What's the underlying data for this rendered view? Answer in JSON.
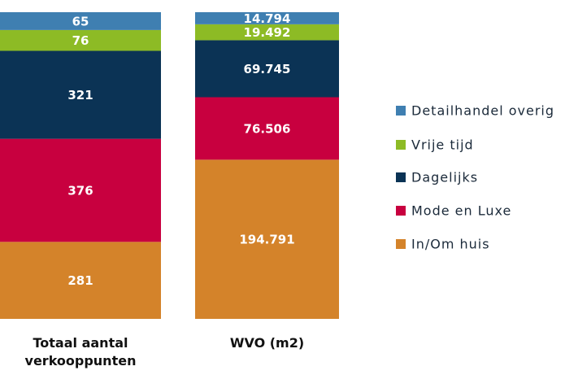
{
  "chart_data": {
    "type": "stacked_bar_100",
    "categories": [
      "Totaal aantal verkooppunten",
      "WVO (m2)"
    ],
    "series": [
      {
        "name": "Detailhandel overig",
        "color": "#3f7fb1",
        "values": [
          65,
          14794
        ],
        "value_labels": [
          "65",
          "14.794"
        ]
      },
      {
        "name": "Vrije tijd",
        "color": "#8dbb25",
        "values": [
          76,
          19492
        ],
        "value_labels": [
          "76",
          "19.492"
        ]
      },
      {
        "name": "Dagelijks",
        "color": "#0b3355",
        "values": [
          321,
          69745
        ],
        "value_labels": [
          "321",
          "69.745"
        ]
      },
      {
        "name": "Mode en Luxe",
        "color": "#c8003f",
        "values": [
          376,
          76506
        ],
        "value_labels": [
          "376",
          "76.506"
        ]
      },
      {
        "name": "In/Om huis",
        "color": "#d4832a",
        "values": [
          281,
          194791
        ],
        "value_labels": [
          "281",
          "194.791"
        ]
      }
    ]
  }
}
